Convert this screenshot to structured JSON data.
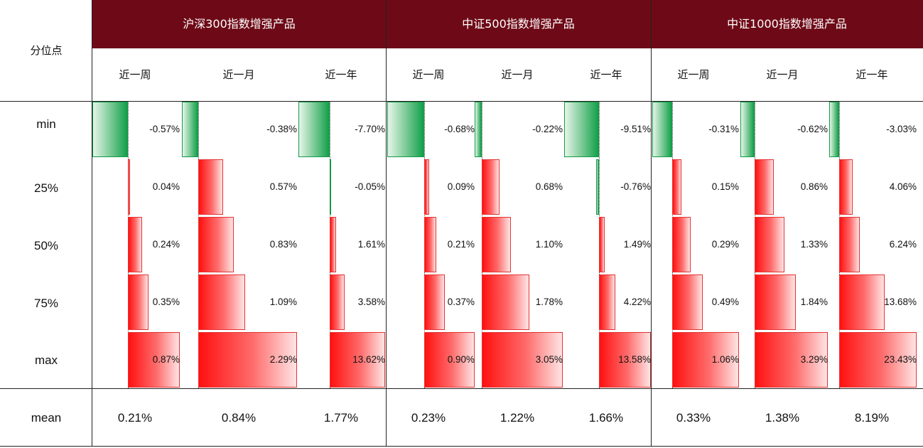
{
  "header": {
    "corner_label": "分位点"
  },
  "groups": [
    {
      "title": "沪深300指数增强产品",
      "periods": [
        "近一周",
        "近一月",
        "近一年"
      ]
    },
    {
      "title": "中证500指数增强产品",
      "periods": [
        "近一周",
        "近一月",
        "近一年"
      ]
    },
    {
      "title": "中证1000指数增强产品",
      "periods": [
        "近一周",
        "近一月",
        "近一年"
      ]
    }
  ],
  "rows": [
    "min",
    "25%",
    "50%",
    "75%",
    "max"
  ],
  "mean_label": "mean",
  "colors": {
    "header_bg": "#6e0a17",
    "positive": "#ff1a1a",
    "negative": "#17a34a"
  },
  "chart_data": {
    "type": "table",
    "title": "",
    "row_labels": [
      "min",
      "25%",
      "50%",
      "75%",
      "max"
    ],
    "columns": [
      {
        "group": "沪深300指数增强产品",
        "period": "近一周",
        "values": [
          -0.57,
          0.04,
          0.24,
          0.35,
          0.87
        ],
        "labels": [
          "-0.57%",
          "0.04%",
          "0.24%",
          "0.35%",
          "0.87%"
        ],
        "mean": "0.21%"
      },
      {
        "group": "沪深300指数增强产品",
        "period": "近一月",
        "values": [
          -0.38,
          0.57,
          0.83,
          1.09,
          2.29
        ],
        "labels": [
          "-0.38%",
          "0.57%",
          "0.83%",
          "1.09%",
          "2.29%"
        ],
        "mean": "0.84%"
      },
      {
        "group": "沪深300指数增强产品",
        "period": "近一年",
        "values": [
          -7.7,
          -0.05,
          1.61,
          3.58,
          13.62
        ],
        "labels": [
          "-7.70%",
          "-0.05%",
          "1.61%",
          "3.58%",
          "13.62%"
        ],
        "mean": "1.77%"
      },
      {
        "group": "中证500指数增强产品",
        "period": "近一周",
        "values": [
          -0.68,
          0.09,
          0.21,
          0.37,
          0.9
        ],
        "labels": [
          "-0.68%",
          "0.09%",
          "0.21%",
          "0.37%",
          "0.90%"
        ],
        "mean": "0.23%"
      },
      {
        "group": "中证500指数增强产品",
        "period": "近一月",
        "values": [
          -0.22,
          0.68,
          1.1,
          1.78,
          3.05
        ],
        "labels": [
          "-0.22%",
          "0.68%",
          "1.10%",
          "1.78%",
          "3.05%"
        ],
        "mean": "1.22%"
      },
      {
        "group": "中证500指数增强产品",
        "period": "近一年",
        "values": [
          -9.51,
          -0.76,
          1.49,
          4.22,
          13.58
        ],
        "labels": [
          "-9.51%",
          "-0.76%",
          "1.49%",
          "4.22%",
          "13.58%"
        ],
        "mean": "1.66%"
      },
      {
        "group": "中证1000指数增强产品",
        "period": "近一周",
        "values": [
          -0.31,
          0.15,
          0.29,
          0.49,
          1.06
        ],
        "labels": [
          "-0.31%",
          "0.15%",
          "0.29%",
          "0.49%",
          "1.06%"
        ],
        "mean": "0.33%"
      },
      {
        "group": "中证1000指数增强产品",
        "period": "近一月",
        "values": [
          -0.62,
          0.86,
          1.33,
          1.84,
          3.29
        ],
        "labels": [
          "-0.62%",
          "0.86%",
          "1.33%",
          "1.84%",
          "3.29%"
        ],
        "mean": "1.38%"
      },
      {
        "group": "中证1000指数增强产品",
        "period": "近一年",
        "values": [
          -3.03,
          4.06,
          6.24,
          13.68,
          23.43
        ],
        "labels": [
          "-3.03%",
          "4.06%",
          "6.24%",
          "13.68%",
          "23.43%"
        ],
        "mean": "8.19%"
      }
    ]
  }
}
